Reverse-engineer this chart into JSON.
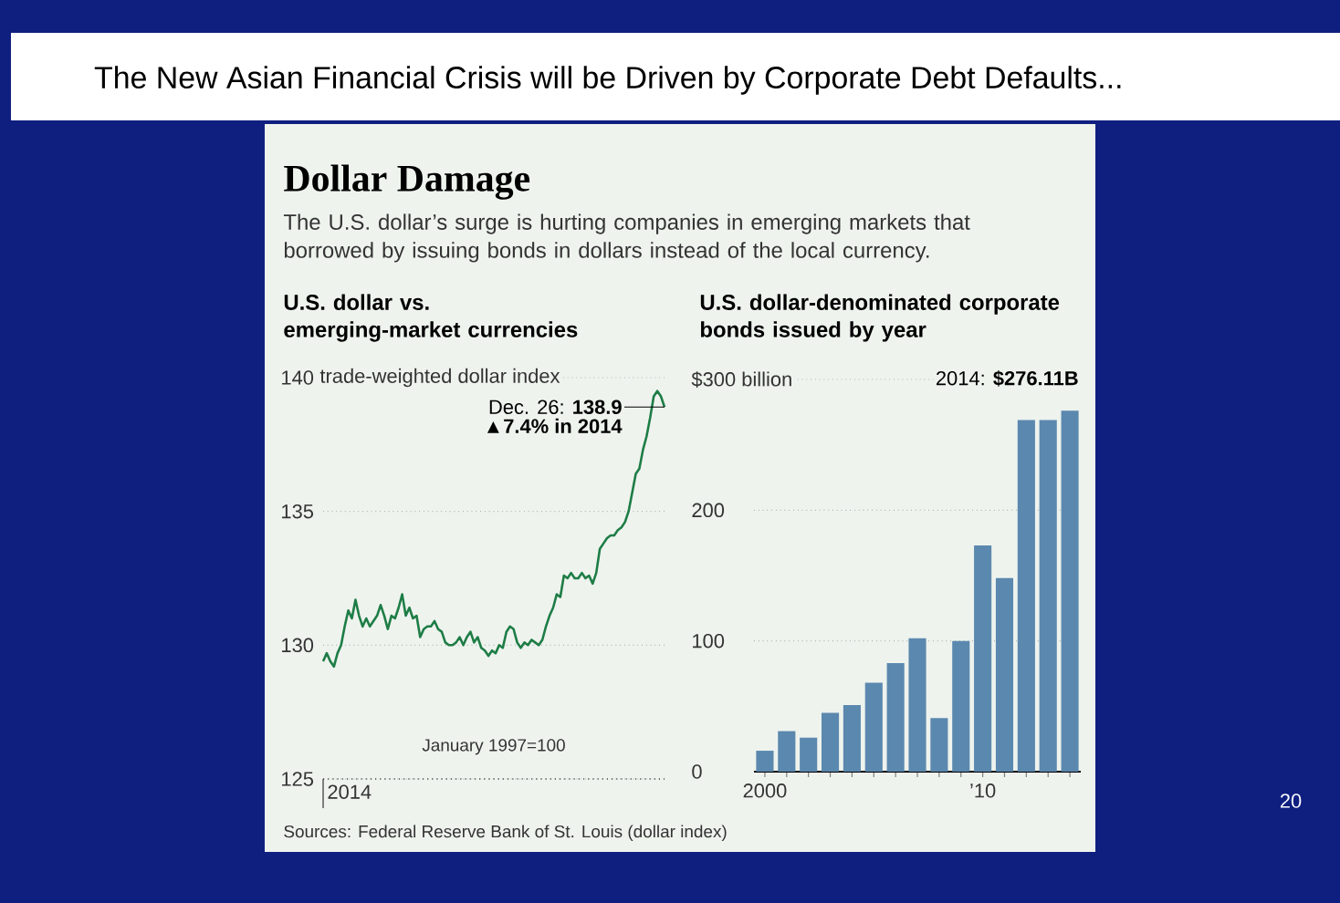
{
  "chart_data": [
    {
      "type": "other",
      "title": "The New Asian Financial Crisis will be Driven by Corporate Debt Defaults...",
      "subtitle": "Dollar Damage",
      "annotations": [
        "The U.S. dollar’s surge is hurting companies in emerging markets that borrowed by issuing bonds in dollars instead of the local currency.",
        "Sources: Federal Reserve Bank of St. Louis (dollar index)",
        "20"
      ]
    },
    {
      "type": "line",
      "title": "U.S. dollar vs. emerging-market currencies",
      "ylabel": "trade-weighted dollar index",
      "color": "#1e7d46",
      "grid": "y",
      "ylim": [
        125,
        140
      ],
      "yticks": [
        125,
        130,
        135,
        140
      ],
      "categories": [
        null,
        null,
        null,
        null,
        null,
        null,
        null,
        null,
        null,
        null,
        null,
        null,
        null,
        null,
        null,
        null,
        null,
        null,
        null,
        null,
        null,
        null,
        null,
        null,
        null,
        null,
        null,
        null,
        null,
        null,
        null,
        null,
        null,
        null,
        null,
        null,
        null,
        null,
        null,
        null,
        null,
        null,
        null,
        null,
        null,
        null,
        null,
        null,
        null,
        null,
        null,
        null,
        null,
        null,
        null,
        null,
        null,
        null,
        null,
        null,
        null,
        null,
        null,
        null,
        null,
        null,
        null,
        null,
        null,
        null,
        null,
        null,
        null,
        null,
        null,
        null,
        null,
        null,
        null,
        null,
        null,
        null,
        null,
        null,
        null,
        null,
        null,
        null,
        null,
        null,
        null,
        null,
        null,
        null,
        null,
        null
      ],
      "values": [
        129.4,
        129.7,
        129.4,
        129.2,
        129.7,
        130.0,
        130.7,
        131.3,
        131.0,
        131.7,
        131.1,
        130.7,
        131.0,
        130.7,
        130.9,
        131.1,
        131.5,
        131.1,
        130.6,
        131.1,
        131.0,
        131.4,
        131.9,
        131.1,
        131.4,
        131.0,
        131.1,
        130.3,
        130.6,
        130.7,
        130.7,
        130.9,
        130.6,
        130.5,
        130.1,
        130.0,
        130.0,
        130.1,
        130.3,
        130.0,
        130.3,
        130.5,
        130.1,
        130.3,
        129.9,
        129.8,
        129.6,
        129.8,
        129.7,
        130.0,
        129.9,
        130.5,
        130.7,
        130.6,
        130.1,
        129.9,
        130.1,
        130.0,
        130.2,
        130.1,
        130.0,
        130.2,
        130.7,
        131.1,
        131.4,
        131.9,
        131.8,
        132.6,
        132.5,
        132.7,
        132.5,
        132.5,
        132.7,
        132.5,
        132.6,
        132.3,
        132.7,
        133.6,
        133.8,
        134.0,
        134.1,
        134.1,
        134.3,
        134.4,
        134.6,
        135.0,
        135.7,
        136.4,
        136.6,
        137.3,
        137.8,
        138.5,
        139.3,
        139.5,
        139.3,
        138.9
      ],
      "annotations": [
        "Dec. 26: **138.9**",
        "▲7.4% in 2014",
        "January 1997=100",
        "2014"
      ]
    },
    {
      "type": "bar",
      "title": "U.S. dollar-denominated corporate bonds issued by year",
      "color": "#5b88ae",
      "grid": "y",
      "x": [
        2000,
        2001,
        2002,
        2003,
        2004,
        2005,
        2006,
        2007,
        2008,
        2009,
        2010,
        2011,
        2012,
        2013,
        2014
      ],
      "values": [
        16,
        31,
        26,
        45,
        51,
        68,
        83,
        102,
        41,
        100,
        173,
        148,
        269,
        269,
        276.11
      ],
      "xlim": [
        1999.5,
        2014.5
      ],
      "ylim": [
        0,
        300
      ],
      "xticks": [
        {
          "value": 2000,
          "label": "2000"
        },
        {
          "value": 2001,
          "label": null
        },
        {
          "value": 2002,
          "label": null
        },
        {
          "value": 2003,
          "label": null
        },
        {
          "value": 2004,
          "label": null
        },
        {
          "value": 2005,
          "label": null
        },
        {
          "value": 2006,
          "label": null
        },
        {
          "value": 2007,
          "label": null
        },
        {
          "value": 2008,
          "label": null
        },
        {
          "value": 2009,
          "label": null
        },
        {
          "value": 2010,
          "label": "’10"
        },
        {
          "value": 2011,
          "label": null
        },
        {
          "value": 2012,
          "label": null
        },
        {
          "value": 2013,
          "label": null
        },
        {
          "value": 2014,
          "label": null
        }
      ],
      "yticks": [
        0,
        100,
        200,
        {
          "value": 300,
          "label": "$300 billion"
        }
      ],
      "annotations": [
        {
          "text": "2014: **$276.11B**",
          "x": 2014,
          "y": 276.11
        }
      ]
    }
  ]
}
